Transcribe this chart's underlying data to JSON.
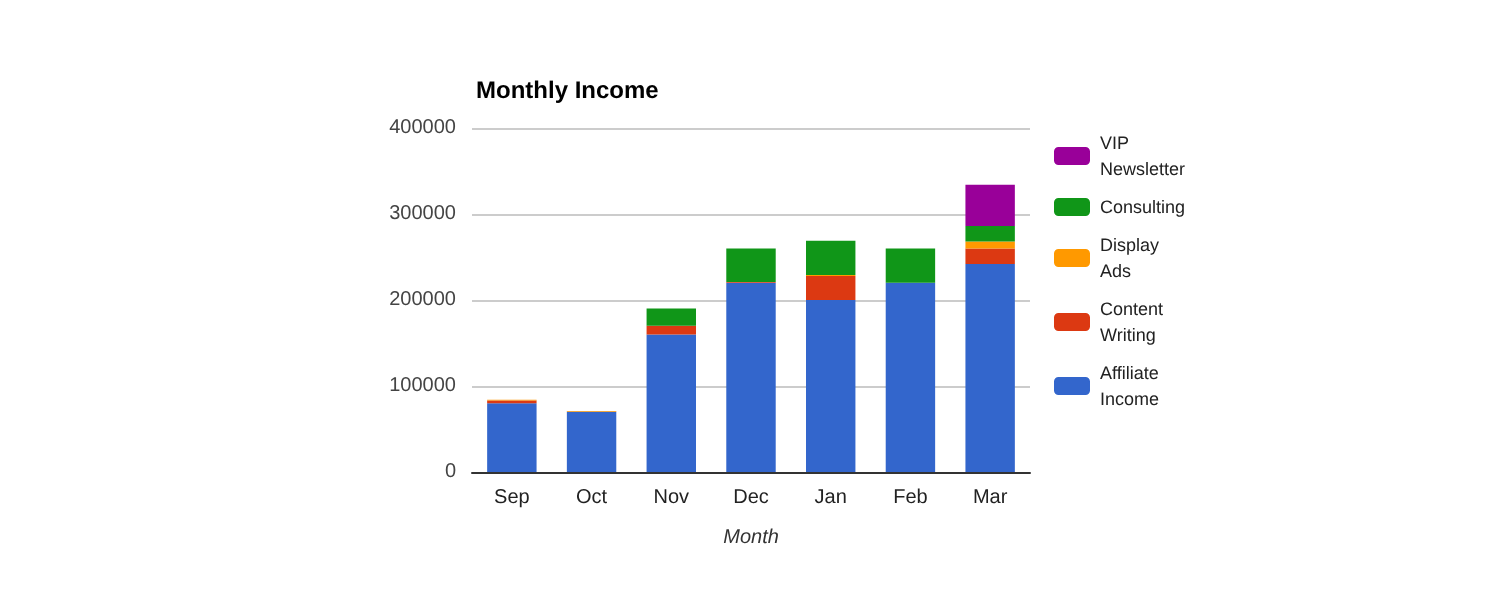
{
  "chart_data": {
    "type": "bar",
    "title": "Monthly Income",
    "xlabel": "Month",
    "stacked": true,
    "grid": "y",
    "legend": "right",
    "categories": [
      "Sep",
      "Oct",
      "Nov",
      "Dec",
      "Jan",
      "Feb",
      "Mar"
    ],
    "ylim": [
      0,
      400000
    ],
    "yticks": [
      0,
      100000,
      200000,
      300000,
      400000
    ],
    "series": [
      {
        "name": "Affiliate Income",
        "color": "#3366cc",
        "values": [
          80000,
          70000,
          160000,
          220000,
          200000,
          220000,
          242000
        ]
      },
      {
        "name": "Content Writing",
        "color": "#dc3912",
        "values": [
          3000,
          null,
          10000,
          1000,
          28000,
          null,
          18000
        ]
      },
      {
        "name": "Display Ads",
        "color": "#ff9900",
        "values": [
          1000,
          1000,
          null,
          null,
          1000,
          null,
          8000
        ]
      },
      {
        "name": "Consulting",
        "color": "#109618",
        "values": [
          null,
          null,
          20000,
          39000,
          40000,
          40000,
          18000
        ]
      },
      {
        "name": "VIP Newsletter",
        "color": "#990099",
        "values": [
          null,
          null,
          null,
          null,
          null,
          null,
          48000
        ]
      }
    ]
  }
}
